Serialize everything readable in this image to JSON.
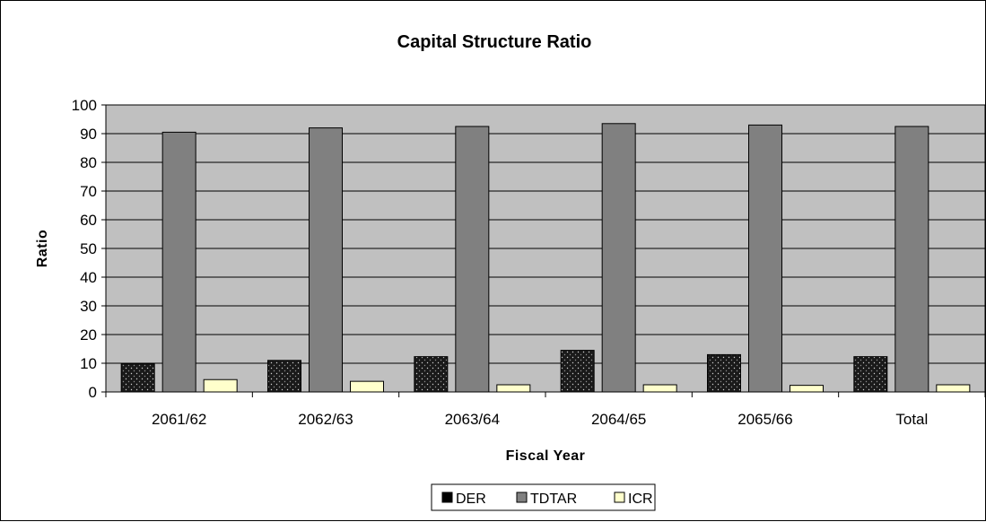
{
  "chart_data": {
    "type": "bar",
    "title": "Capital Structure Ratio",
    "xlabel": "Fiscal Year",
    "ylabel": "Ratio",
    "categories": [
      "2061/62",
      "2062/63",
      "2063/64",
      "2064/65",
      "2065/66",
      "Total"
    ],
    "series": [
      {
        "name": "DER",
        "values": [
          9.8,
          11.0,
          12.3,
          14.5,
          13.0,
          12.3
        ],
        "color": "#1a1a1a",
        "pattern": "dots"
      },
      {
        "name": "TDTAR",
        "values": [
          90.5,
          92.0,
          92.5,
          93.5,
          93.0,
          92.5
        ],
        "color": "#808080"
      },
      {
        "name": "ICR",
        "values": [
          4.3,
          3.7,
          2.5,
          2.5,
          2.3,
          2.5
        ],
        "color": "#ffffcc"
      }
    ],
    "ylim": [
      0,
      100
    ],
    "yticks": [
      0,
      10,
      20,
      30,
      40,
      50,
      60,
      70,
      80,
      90,
      100
    ],
    "grid": true,
    "plot_background": "#c0c0c0",
    "legend_position": "bottom"
  }
}
